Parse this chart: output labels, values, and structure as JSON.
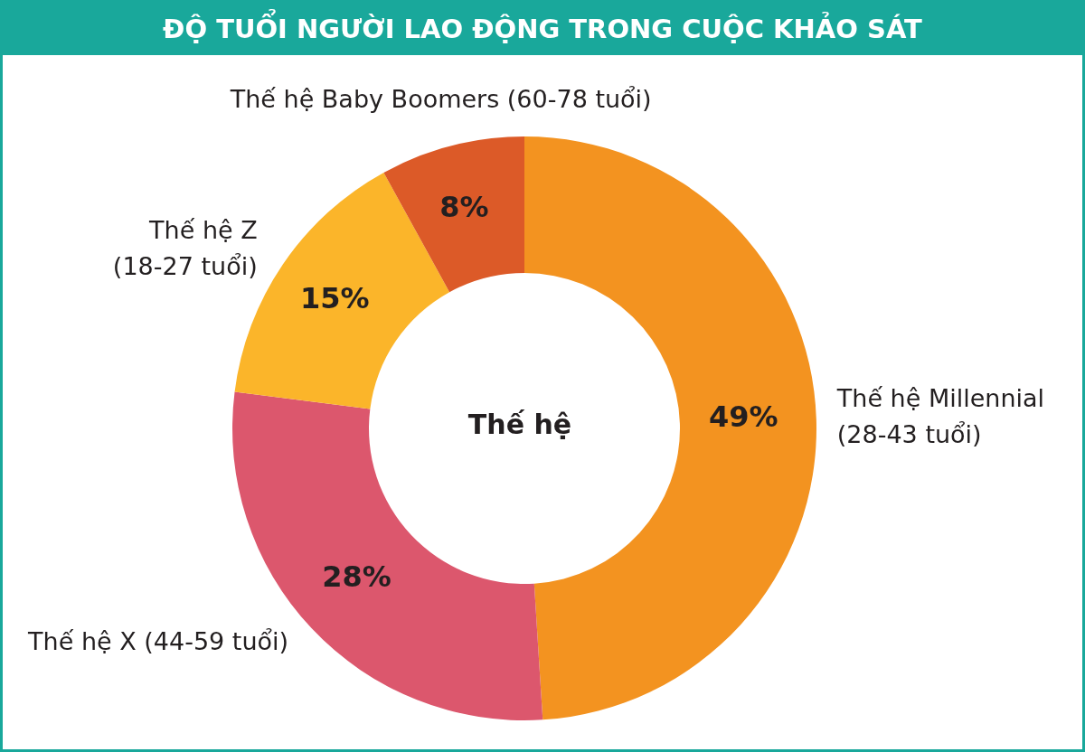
{
  "chart_data": {
    "type": "donut",
    "title": "ĐỘ TUỔI NGƯỜI LAO ĐỘNG TRONG CUỘC KHẢO SÁT",
    "categories": [
      "Thế hệ Millennial (28-43 tuổi)",
      "Thế hệ X (44-59 tuổi)",
      "Thế hệ Z (18-27 tuổi)",
      "Thế hệ Baby Boomers (60-78 tuổi)"
    ],
    "values": [
      49,
      28,
      15,
      8
    ],
    "value_labels": [
      "49%",
      "28%",
      "15%",
      "8%"
    ],
    "colors": [
      "#f39320",
      "#dc576d",
      "#fbb52a",
      "#dc5a28"
    ],
    "annotations": [
      "Thế hệ"
    ]
  }
}
